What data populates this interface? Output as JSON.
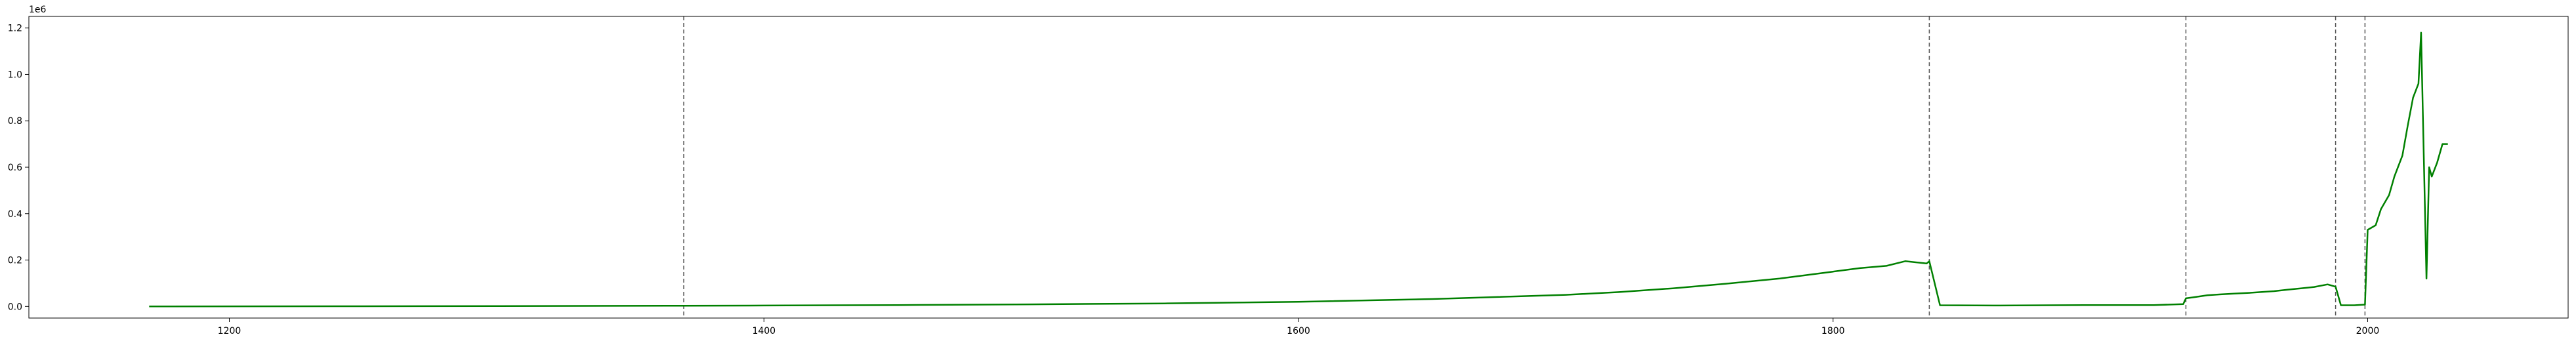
{
  "chart_data": {
    "type": "line",
    "title": "",
    "xlabel": "",
    "ylabel": "",
    "y_offset_text": "1e6",
    "xlim": [
      1125,
      2075
    ],
    "ylim": [
      -50000,
      1250000
    ],
    "grid": false,
    "x_ticks": [
      1200,
      1400,
      1600,
      1800,
      2000
    ],
    "y_ticks": [
      0,
      200000,
      400000,
      600000,
      800000,
      1000000,
      1200000
    ],
    "x_tick_labels": [
      "1200",
      "1400",
      "1600",
      "1800",
      "2000"
    ],
    "y_tick_labels": [
      "0.0",
      "0.2",
      "0.4",
      "0.6",
      "0.8",
      "1.0",
      "1.2"
    ],
    "vlines": [
      1370,
      1836,
      1932,
      1988,
      1999
    ],
    "series": [
      {
        "color": "#008000",
        "x": [
          1170,
          1250,
          1300,
          1370,
          1400,
          1450,
          1500,
          1550,
          1600,
          1650,
          1700,
          1720,
          1740,
          1760,
          1780,
          1800,
          1810,
          1820,
          1827,
          1835,
          1836,
          1840,
          1860,
          1880,
          1900,
          1920,
          1931,
          1932,
          1935,
          1940,
          1945,
          1950,
          1955,
          1960,
          1965,
          1970,
          1975,
          1980,
          1985,
          1988,
          1990,
          1995,
          1999,
          2000,
          2003,
          2005,
          2008,
          2010,
          2013,
          2015,
          2017,
          2019,
          2020,
          2022,
          2023,
          2024,
          2026,
          2028,
          2030
        ],
        "y": [
          0,
          1000,
          1500,
          3000,
          4000,
          6000,
          9000,
          13000,
          20000,
          32000,
          50000,
          62000,
          78000,
          98000,
          120000,
          150000,
          165000,
          175000,
          195000,
          185000,
          195000,
          5000,
          4000,
          5000,
          6000,
          6000,
          10000,
          35000,
          40000,
          48000,
          52000,
          55000,
          58000,
          62000,
          66000,
          72000,
          78000,
          84000,
          95000,
          85000,
          5000,
          5000,
          8000,
          330000,
          350000,
          420000,
          480000,
          560000,
          650000,
          780000,
          900000,
          960000,
          1180000,
          120000,
          600000,
          560000,
          620000,
          700000,
          700000
        ]
      }
    ]
  }
}
